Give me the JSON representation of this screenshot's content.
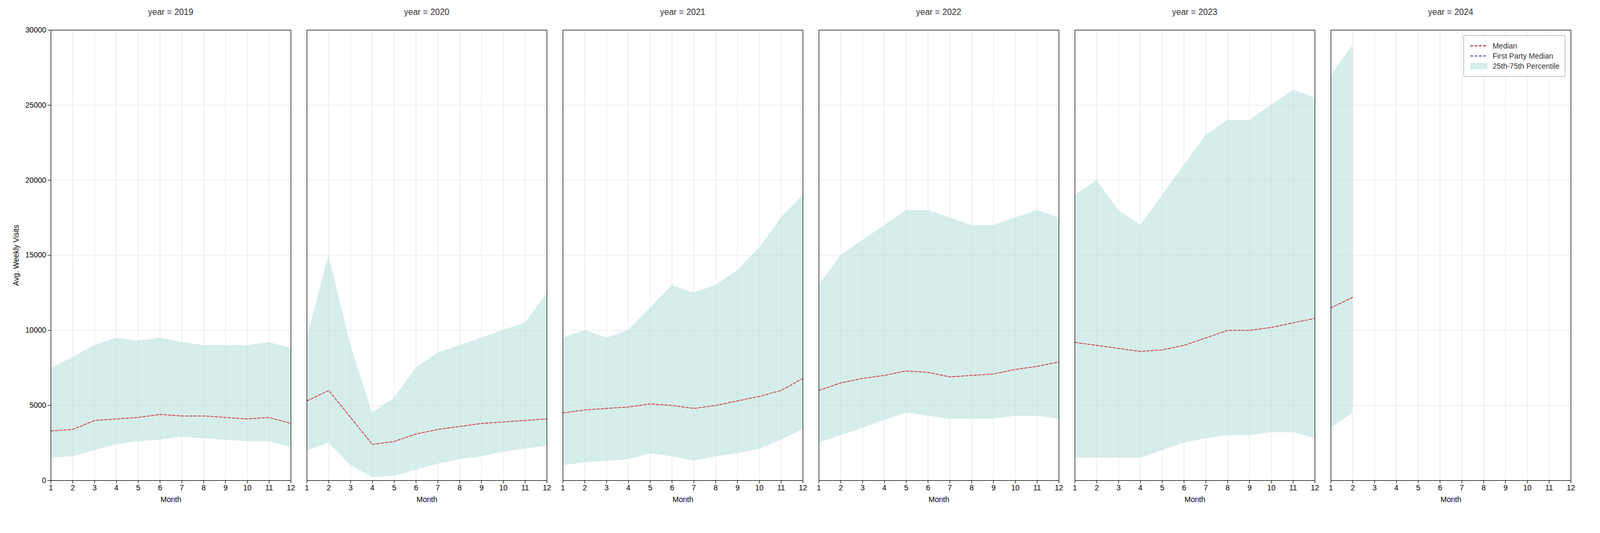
{
  "chart_data": [
    {
      "type": "line",
      "title": "year = 2019",
      "xlabel": "Month",
      "ylabel": "Avg. Weekly Visits",
      "x": [
        1,
        2,
        3,
        4,
        5,
        6,
        7,
        8,
        9,
        10,
        11,
        12
      ],
      "xlim": [
        1,
        12
      ],
      "xticks": [
        1,
        2,
        3,
        4,
        5,
        6,
        7,
        8,
        9,
        10,
        11,
        12
      ],
      "ylim": [
        0,
        30000
      ],
      "yticks": [
        0,
        5000,
        10000,
        15000,
        20000,
        25000,
        30000
      ],
      "grid": true,
      "series": [
        {
          "name": "Median",
          "color": "#cc3333",
          "line_style": "dashed",
          "values": [
            3300,
            3400,
            4000,
            4100,
            4200,
            4400,
            4300,
            4300,
            4200,
            4100,
            4200,
            3800
          ]
        },
        {
          "name": "25th-75th Percentile",
          "type": "band",
          "color": "#b2dfdb",
          "lower": [
            1500,
            1600,
            2000,
            2400,
            2600,
            2700,
            2900,
            2800,
            2700,
            2600,
            2600,
            2200
          ],
          "upper": [
            7500,
            8200,
            9000,
            9500,
            9300,
            9500,
            9200,
            9000,
            9000,
            9000,
            9200,
            8800
          ]
        }
      ]
    },
    {
      "type": "line",
      "title": "year = 2020",
      "xlabel": "Month",
      "x": [
        1,
        2,
        3,
        4,
        5,
        6,
        7,
        8,
        9,
        10,
        11,
        12
      ],
      "xlim": [
        1,
        12
      ],
      "xticks": [
        1,
        2,
        3,
        4,
        5,
        6,
        7,
        8,
        9,
        10,
        11,
        12
      ],
      "ylim": [
        0,
        30000
      ],
      "yticks": [
        0,
        5000,
        10000,
        15000,
        20000,
        25000,
        30000
      ],
      "grid": true,
      "tick_labels": "x",
      "series": [
        {
          "name": "Median",
          "color": "#cc3333",
          "line_style": "dashed",
          "values": [
            5300,
            6000,
            4200,
            2400,
            2600,
            3100,
            3400,
            3600,
            3800,
            3900,
            4000,
            4100
          ]
        },
        {
          "name": "25th-75th Percentile",
          "type": "band",
          "color": "#b2dfdb",
          "lower": [
            2000,
            2500,
            1000,
            200,
            300,
            700,
            1100,
            1400,
            1600,
            1900,
            2100,
            2300
          ],
          "upper": [
            9500,
            15000,
            9000,
            4500,
            5500,
            7500,
            8500,
            9000,
            9500,
            10000,
            10500,
            12500
          ]
        }
      ]
    },
    {
      "type": "line",
      "title": "year = 2021",
      "xlabel": "Month",
      "x": [
        1,
        2,
        3,
        4,
        5,
        6,
        7,
        8,
        9,
        10,
        11,
        12
      ],
      "xlim": [
        1,
        12
      ],
      "xticks": [
        1,
        2,
        3,
        4,
        5,
        6,
        7,
        8,
        9,
        10,
        11,
        12
      ],
      "ylim": [
        0,
        30000
      ],
      "yticks": [
        0,
        5000,
        10000,
        15000,
        20000,
        25000,
        30000
      ],
      "grid": true,
      "tick_labels": "x",
      "series": [
        {
          "name": "Median",
          "color": "#cc3333",
          "line_style": "dashed",
          "values": [
            4500,
            4700,
            4800,
            4900,
            5100,
            5000,
            4800,
            5000,
            5300,
            5600,
            6000,
            6800
          ]
        },
        {
          "name": "25th-75th Percentile",
          "type": "band",
          "color": "#b2dfdb",
          "lower": [
            1000,
            1200,
            1300,
            1400,
            1800,
            1600,
            1300,
            1600,
            1800,
            2100,
            2700,
            3400
          ],
          "upper": [
            9500,
            10000,
            9500,
            10000,
            11500,
            13000,
            12500,
            13000,
            14000,
            15500,
            17500,
            19000
          ]
        }
      ]
    },
    {
      "type": "line",
      "title": "year = 2022",
      "xlabel": "Month",
      "x": [
        1,
        2,
        3,
        4,
        5,
        6,
        7,
        8,
        9,
        10,
        11,
        12
      ],
      "xlim": [
        1,
        12
      ],
      "xticks": [
        1,
        2,
        3,
        4,
        5,
        6,
        7,
        8,
        9,
        10,
        11,
        12
      ],
      "ylim": [
        0,
        30000
      ],
      "yticks": [
        0,
        5000,
        10000,
        15000,
        20000,
        25000,
        30000
      ],
      "grid": true,
      "tick_labels": "x",
      "series": [
        {
          "name": "Median",
          "color": "#cc3333",
          "line_style": "dashed",
          "values": [
            6000,
            6500,
            6800,
            7000,
            7300,
            7200,
            6900,
            7000,
            7100,
            7400,
            7600,
            7900
          ]
        },
        {
          "name": "25th-75th Percentile",
          "type": "band",
          "color": "#b2dfdb",
          "lower": [
            2500,
            3000,
            3500,
            4000,
            4500,
            4300,
            4100,
            4100,
            4100,
            4300,
            4300,
            4100
          ],
          "upper": [
            13000,
            15000,
            16000,
            17000,
            18000,
            18000,
            17500,
            17000,
            17000,
            17500,
            18000,
            17500
          ]
        }
      ]
    },
    {
      "type": "line",
      "title": "year = 2023",
      "xlabel": "Month",
      "x": [
        1,
        2,
        3,
        4,
        5,
        6,
        7,
        8,
        9,
        10,
        11,
        12
      ],
      "xlim": [
        1,
        12
      ],
      "xticks": [
        1,
        2,
        3,
        4,
        5,
        6,
        7,
        8,
        9,
        10,
        11,
        12
      ],
      "ylim": [
        0,
        30000
      ],
      "yticks": [
        0,
        5000,
        10000,
        15000,
        20000,
        25000,
        30000
      ],
      "grid": true,
      "tick_labels": "x",
      "series": [
        {
          "name": "Median",
          "color": "#cc3333",
          "line_style": "dashed",
          "values": [
            9200,
            9000,
            8800,
            8600,
            8700,
            9000,
            9500,
            10000,
            10000,
            10200,
            10500,
            10800
          ]
        },
        {
          "name": "25th-75th Percentile",
          "type": "band",
          "color": "#b2dfdb",
          "lower": [
            1500,
            1500,
            1500,
            1500,
            2000,
            2500,
            2800,
            3000,
            3000,
            3200,
            3200,
            2800
          ],
          "upper": [
            19000,
            20000,
            18000,
            17000,
            19000,
            21000,
            23000,
            24000,
            24000,
            25000,
            26000,
            25500
          ]
        }
      ]
    },
    {
      "type": "line",
      "title": "year = 2024",
      "xlabel": "Month",
      "x": [
        1,
        2
      ],
      "xlim": [
        1,
        12
      ],
      "xticks": [
        1,
        2,
        3,
        4,
        5,
        6,
        7,
        8,
        9,
        10,
        11,
        12
      ],
      "ylim": [
        0,
        30000
      ],
      "yticks": [
        0,
        5000,
        10000,
        15000,
        20000,
        25000,
        30000
      ],
      "grid": true,
      "tick_labels": "x",
      "legend": "upper right",
      "series": [
        {
          "name": "Median",
          "color": "#cc3333",
          "line_style": "dashed",
          "values": [
            11500,
            12200
          ]
        },
        {
          "name": "First Party Median",
          "color": "#5566bb",
          "line_style": "dashed",
          "values": [
            null,
            null
          ]
        },
        {
          "name": "25th-75th Percentile",
          "type": "band",
          "color": "#b2dfdb",
          "lower": [
            3500,
            4500
          ],
          "upper": [
            27000,
            29000
          ]
        }
      ]
    }
  ]
}
